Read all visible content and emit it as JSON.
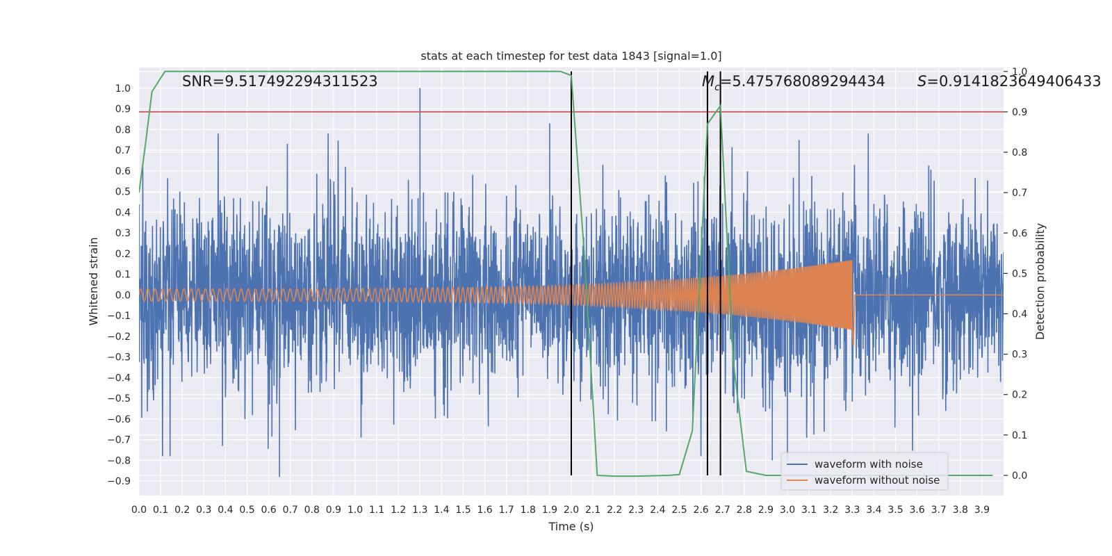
{
  "chart_data": {
    "type": "line",
    "title": "stats at each timestep for test data 1843 [signal=1.0]",
    "xlabel": "Time (s)",
    "ylabel": "Whitened strain",
    "ylabel_right": "Detection probability",
    "xlim": [
      0.0,
      4.0
    ],
    "ylim": [
      -0.97,
      1.1
    ],
    "ylim_right": [
      -0.05,
      1.01
    ],
    "x_ticks": [
      0.0,
      0.1,
      0.2,
      0.3,
      0.4,
      0.5,
      0.6,
      0.7,
      0.8,
      0.9,
      1.0,
      1.1,
      1.2,
      1.3,
      1.4,
      1.5,
      1.6,
      1.7,
      1.8,
      1.9,
      2.0,
      2.1,
      2.2,
      2.3,
      2.4,
      2.5,
      2.6,
      2.7,
      2.8,
      2.9,
      3.0,
      3.1,
      3.2,
      3.3,
      3.4,
      3.5,
      3.6,
      3.7,
      3.8,
      3.9
    ],
    "x_tick_labels": [
      "0.0",
      "0.1",
      "0.2",
      "0.3",
      "0.4",
      "0.5",
      "0.6",
      "0.7",
      "0.8",
      "0.9",
      "1.0",
      "1.1",
      "1.2",
      "1.3",
      "1.4",
      "1.5",
      "1.6",
      "1.7",
      "1.8",
      "1.9",
      "2.0",
      "2.1",
      "2.2",
      "2.3",
      "2.4",
      "2.5",
      "2.6",
      "2.7",
      "2.8",
      "2.9",
      "3.0",
      "3.1",
      "3.2",
      "3.3",
      "3.4",
      "3.5",
      "3.6",
      "3.7",
      "3.8",
      "3.9"
    ],
    "y_ticks": [
      1.0,
      0.9,
      0.8,
      0.7,
      0.6,
      0.5,
      0.4,
      0.3,
      0.2,
      0.1,
      0.0,
      -0.1,
      -0.2,
      -0.3,
      -0.4,
      -0.5,
      -0.6,
      -0.7,
      -0.8,
      -0.9
    ],
    "y_tick_labels": [
      "1.0",
      "0.9",
      "0.8",
      "0.7",
      "0.6",
      "0.5",
      "0.4",
      "0.3",
      "0.2",
      "0.1",
      "0.0",
      "−0.1",
      "−0.2",
      "−0.3",
      "−0.4",
      "−0.5",
      "−0.6",
      "−0.7",
      "−0.8",
      "−0.9"
    ],
    "y_right_ticks": [
      1.0,
      0.9,
      0.8,
      0.7,
      0.6,
      0.5,
      0.4,
      0.3,
      0.2,
      0.1,
      0.0
    ],
    "y_right_tick_labels": [
      "1.0",
      "0.9",
      "0.8",
      "0.7",
      "0.6",
      "0.5",
      "0.4",
      "0.3",
      "0.2",
      "0.1",
      "0.0"
    ],
    "annotations": {
      "snr": "SNR=9.517492294311523",
      "mc_symbol": "M",
      "mc_sub": "c",
      "mc_value": "=5.475768089294434",
      "s_symbol": "S",
      "s_value": "=0.9141823649406433"
    },
    "threshold_line": {
      "y_right": 0.9,
      "color": "#c44e52"
    },
    "vertical_markers": [
      {
        "x": 2.0,
        "y_right_top": 1.0
      },
      {
        "x": 2.63,
        "y_right_top": 1.0
      },
      {
        "x": 2.69,
        "y_right_top": 1.0
      }
    ],
    "series": [
      {
        "name": "waveform with noise",
        "color": "#4c72b0",
        "kind": "noise",
        "rms": 0.22,
        "spikes": [
          {
            "x": 1.3,
            "y": 1.0
          },
          {
            "x": 1.9,
            "y": 0.83
          },
          {
            "x": 0.65,
            "y": -0.88
          },
          {
            "x": 2.93,
            "y": -0.8
          },
          {
            "x": 3.0,
            "y": -0.8
          }
        ]
      },
      {
        "name": "waveform without noise",
        "color": "#dd8452",
        "kind": "chirp",
        "f0": 30,
        "f_end": 180,
        "t_merge": 3.3,
        "amp_start": 0.03,
        "amp_end": 0.17
      },
      {
        "name": "detection probability",
        "color": "#55a868",
        "axis": "right",
        "points": [
          [
            0.0,
            0.7
          ],
          [
            0.03,
            0.82
          ],
          [
            0.06,
            0.95
          ],
          [
            0.12,
            1.0
          ],
          [
            0.2,
            1.0
          ],
          [
            1.0,
            1.0
          ],
          [
            1.5,
            1.0
          ],
          [
            1.95,
            1.0
          ],
          [
            2.0,
            0.99
          ],
          [
            2.06,
            0.55
          ],
          [
            2.12,
            0.0
          ],
          [
            2.2,
            -0.002
          ],
          [
            2.3,
            -0.002
          ],
          [
            2.45,
            0.0
          ],
          [
            2.5,
            0.002
          ],
          [
            2.56,
            0.11
          ],
          [
            2.63,
            0.87
          ],
          [
            2.69,
            0.915
          ],
          [
            2.75,
            0.28
          ],
          [
            2.81,
            0.01
          ],
          [
            2.9,
            0.0
          ],
          [
            3.2,
            0.0
          ],
          [
            3.3,
            0.0
          ],
          [
            3.6,
            0.0
          ],
          [
            3.95,
            0.0
          ]
        ]
      }
    ],
    "legend": {
      "position": "bottom-right",
      "entries": [
        {
          "label": "waveform with noise",
          "color": "#4c72b0"
        },
        {
          "label": "waveform without noise",
          "color": "#dd8452"
        }
      ]
    },
    "style": {
      "background": "#eaeaf2",
      "grid": "#ffffff",
      "vline_color": "#000000"
    }
  }
}
